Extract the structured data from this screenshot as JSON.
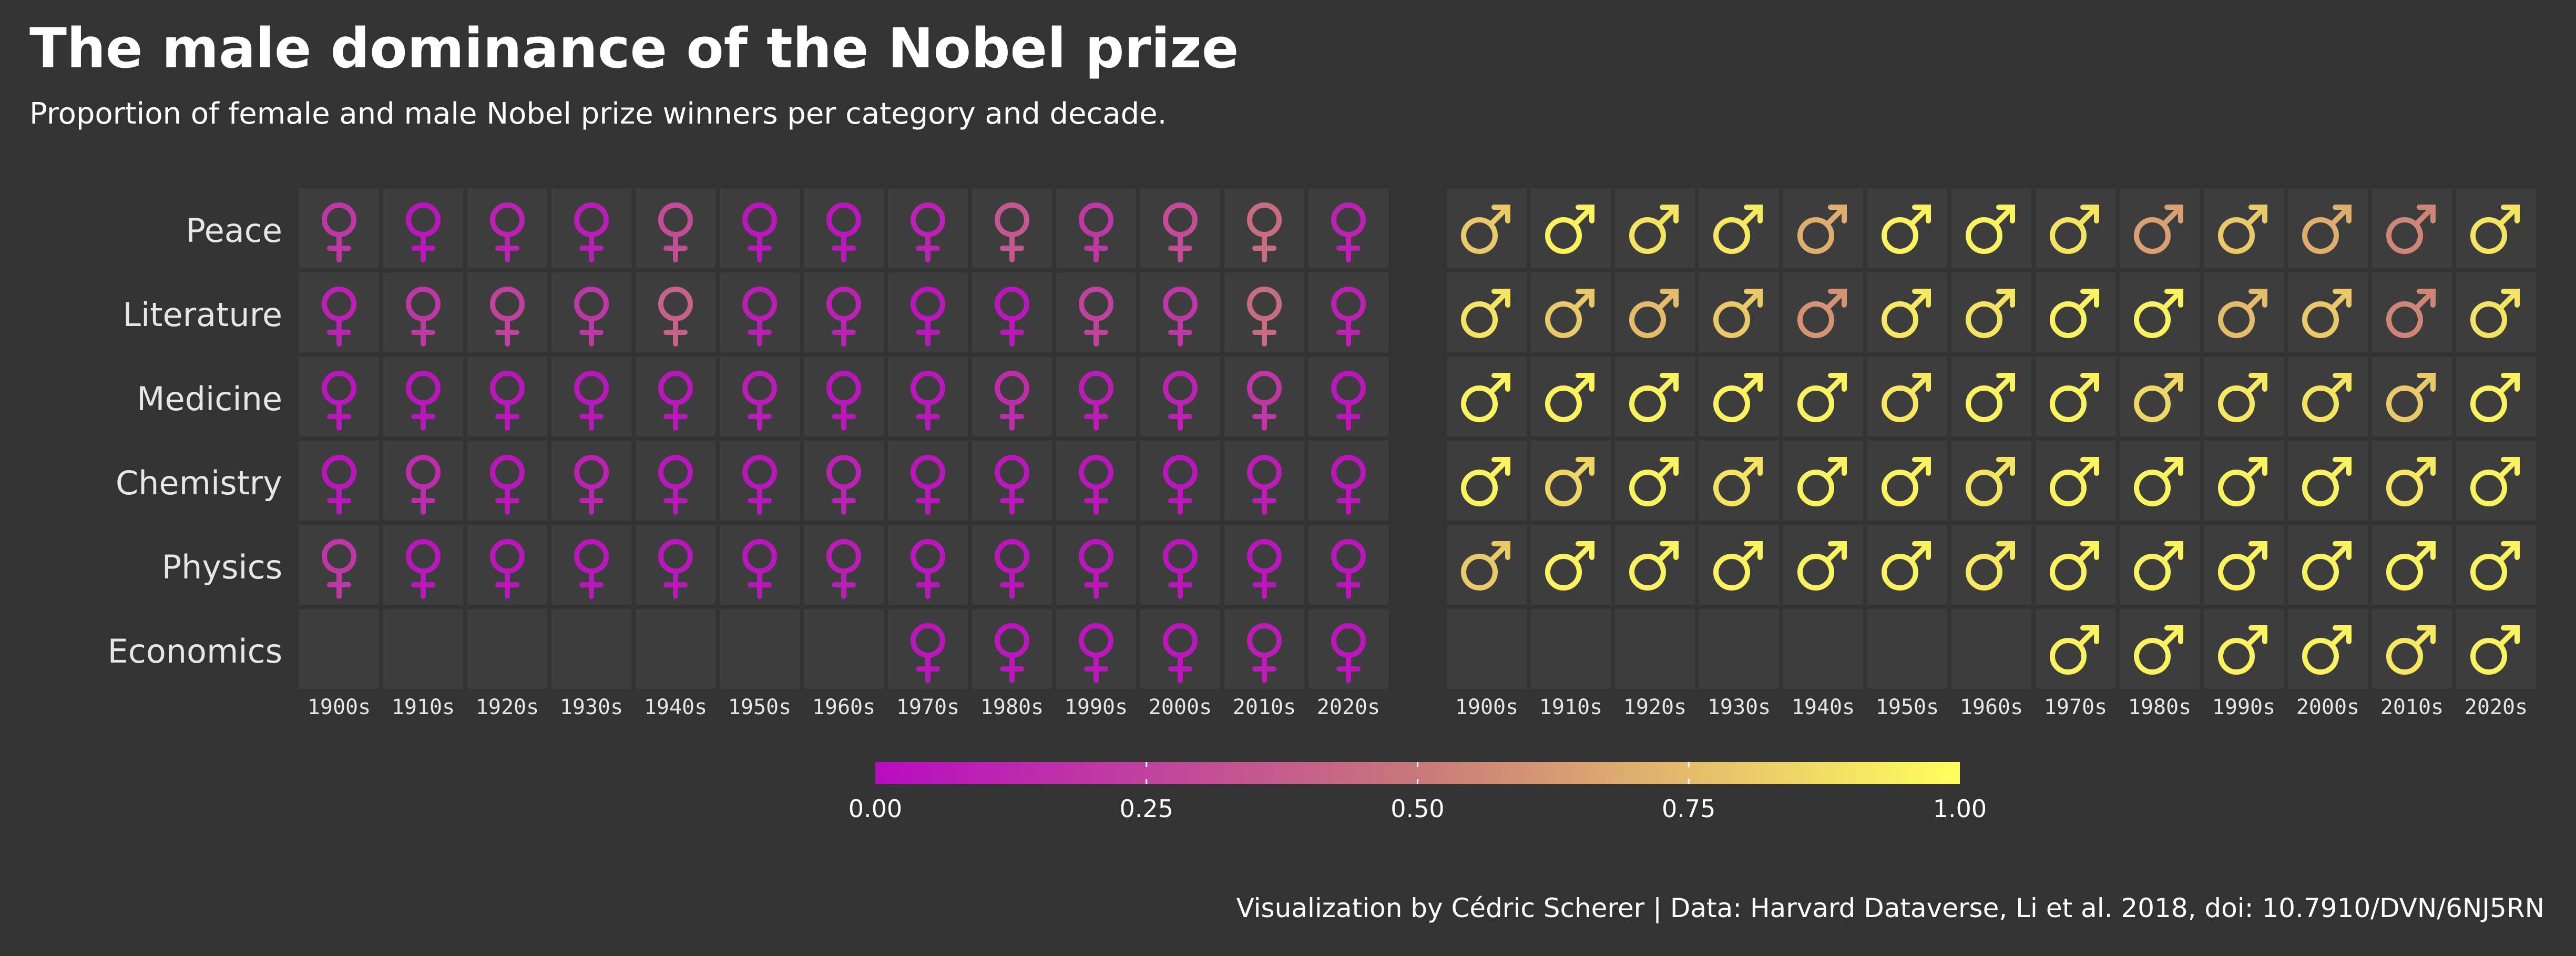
{
  "title": "The male dominance of the Nobel prize",
  "subtitle": "Proportion of female and male Nobel prize winners per category and decade.",
  "caption": "Visualization by Cédric Scherer  |  Data: Harvard Dataverse, Li et al. 2018, doi: 10.7910/DVN/6NJ5RN",
  "colors": {
    "background": "#333333",
    "tile": "#3d3d3d",
    "scale_low": "#b90bc2",
    "scale_mid": "#c9787a",
    "scale_high": "#ffff5c"
  },
  "chart_data": {
    "type": "heatmap",
    "encoding": "proportion of winners of each gender, shown as symbol color",
    "decades": [
      "1900s",
      "1910s",
      "1920s",
      "1930s",
      "1940s",
      "1950s",
      "1960s",
      "1970s",
      "1980s",
      "1990s",
      "2000s",
      "2010s",
      "2020s"
    ],
    "categories": [
      "Peace",
      "Literature",
      "Medicine",
      "Chemistry",
      "Physics",
      "Economics"
    ],
    "panels": [
      {
        "name": "female",
        "symbol": "female-symbol",
        "values": [
          [
            0.2,
            0.05,
            0.1,
            0.08,
            0.3,
            0.05,
            0.05,
            0.1,
            0.35,
            0.2,
            0.3,
            0.45,
            0.1
          ],
          [
            0.1,
            0.2,
            0.25,
            0.2,
            0.4,
            0.08,
            0.1,
            0.05,
            0.05,
            0.25,
            0.2,
            0.45,
            0.1
          ],
          [
            0.05,
            0.05,
            0.05,
            0.05,
            0.05,
            0.08,
            0.05,
            0.05,
            0.15,
            0.08,
            0.1,
            0.2,
            0.05
          ],
          [
            0.05,
            0.15,
            0.05,
            0.1,
            0.05,
            0.05,
            0.1,
            0.05,
            0.05,
            0.05,
            0.05,
            0.08,
            0.05
          ],
          [
            0.2,
            0.05,
            0.05,
            0.05,
            0.05,
            0.05,
            0.08,
            0.05,
            0.05,
            0.05,
            0.05,
            0.05,
            0.05
          ],
          [
            null,
            null,
            null,
            null,
            null,
            null,
            null,
            0.05,
            0.05,
            0.05,
            0.05,
            0.08,
            0.05
          ]
        ]
      },
      {
        "name": "male",
        "symbol": "male-symbol",
        "values": [
          [
            0.8,
            0.95,
            0.9,
            0.92,
            0.7,
            0.95,
            0.95,
            0.9,
            0.65,
            0.8,
            0.7,
            0.55,
            0.9
          ],
          [
            0.9,
            0.8,
            0.75,
            0.8,
            0.6,
            0.92,
            0.9,
            0.95,
            0.95,
            0.75,
            0.8,
            0.55,
            0.9
          ],
          [
            0.95,
            0.95,
            0.95,
            0.95,
            0.95,
            0.92,
            0.95,
            0.95,
            0.85,
            0.92,
            0.9,
            0.8,
            0.95
          ],
          [
            0.95,
            0.85,
            0.95,
            0.9,
            0.95,
            0.95,
            0.9,
            0.95,
            0.95,
            0.95,
            0.95,
            0.92,
            0.95
          ],
          [
            0.8,
            0.95,
            0.95,
            0.95,
            0.95,
            0.95,
            0.92,
            0.95,
            0.95,
            0.95,
            0.95,
            0.95,
            0.95
          ],
          [
            null,
            null,
            null,
            null,
            null,
            null,
            null,
            0.95,
            0.95,
            0.95,
            0.95,
            0.92,
            0.95
          ]
        ]
      }
    ],
    "legend": {
      "range": [
        0,
        1
      ],
      "breaks": [
        0,
        0.25,
        0.5,
        0.75,
        1
      ],
      "labels": [
        "0.00",
        "0.25",
        "0.50",
        "0.75",
        "1.00"
      ]
    }
  }
}
